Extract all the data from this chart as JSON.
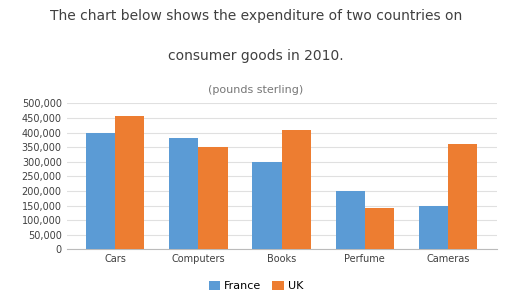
{
  "title_line1": "The chart below shows the expenditure of two countries on",
  "title_line2": "consumer goods in 2010.",
  "title_line3": "(pounds sterling)",
  "categories": [
    "Cars",
    "Computers",
    "Books",
    "Perfume",
    "Cameras"
  ],
  "france_values": [
    400000,
    380000,
    300000,
    200000,
    150000
  ],
  "uk_values": [
    455000,
    350000,
    408000,
    140000,
    360000
  ],
  "france_color": "#5B9BD5",
  "uk_color": "#ED7D31",
  "ylim": [
    0,
    500000
  ],
  "yticks": [
    0,
    50000,
    100000,
    150000,
    200000,
    250000,
    300000,
    350000,
    400000,
    450000,
    500000
  ],
  "legend_labels": [
    "France",
    "UK"
  ],
  "background_color": "#ffffff",
  "chart_bg": "#ffffff",
  "border_color": "#cccccc",
  "bar_width": 0.35,
  "title_fontsize": 10,
  "subtitle_fontsize": 8,
  "tick_fontsize": 7,
  "legend_fontsize": 8,
  "title_color": "#404040",
  "grid_color": "#e0e0e0"
}
